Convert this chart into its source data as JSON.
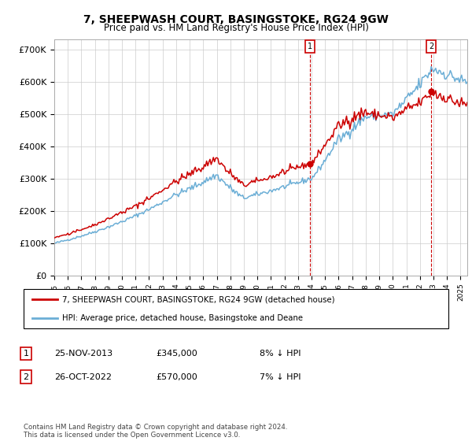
{
  "title": "7, SHEEPWASH COURT, BASINGSTOKE, RG24 9GW",
  "subtitle": "Price paid vs. HM Land Registry's House Price Index (HPI)",
  "ylabel_ticks": [
    "£0",
    "£100K",
    "£200K",
    "£300K",
    "£400K",
    "£500K",
    "£600K",
    "£700K"
  ],
  "ylim": [
    0,
    720000
  ],
  "xlim_start": 1995.0,
  "xlim_end": 2025.5,
  "sale1_date": 2013.9,
  "sale1_price": 345000,
  "sale2_date": 2022.83,
  "sale2_price": 570000,
  "hpi_color": "#6baed6",
  "price_color": "#cc0000",
  "bg_color": "#ffffff",
  "grid_color": "#cccccc",
  "legend_label_price": "7, SHEEPWASH COURT, BASINGSTOKE, RG24 9GW (detached house)",
  "legend_label_hpi": "HPI: Average price, detached house, Basingstoke and Deane",
  "table_row1": [
    "1",
    "25-NOV-2013",
    "£345,000",
    "8% ↓ HPI"
  ],
  "table_row2": [
    "2",
    "26-OCT-2022",
    "£570,000",
    "7% ↓ HPI"
  ],
  "footer": "Contains HM Land Registry data © Crown copyright and database right 2024.\nThis data is licensed under the Open Government Licence v3.0.",
  "xticks": [
    1995,
    1996,
    1997,
    1998,
    1999,
    2000,
    2001,
    2002,
    2003,
    2004,
    2005,
    2006,
    2007,
    2008,
    2009,
    2010,
    2011,
    2012,
    2013,
    2014,
    2015,
    2016,
    2017,
    2018,
    2019,
    2020,
    2021,
    2022,
    2023,
    2024,
    2025
  ]
}
